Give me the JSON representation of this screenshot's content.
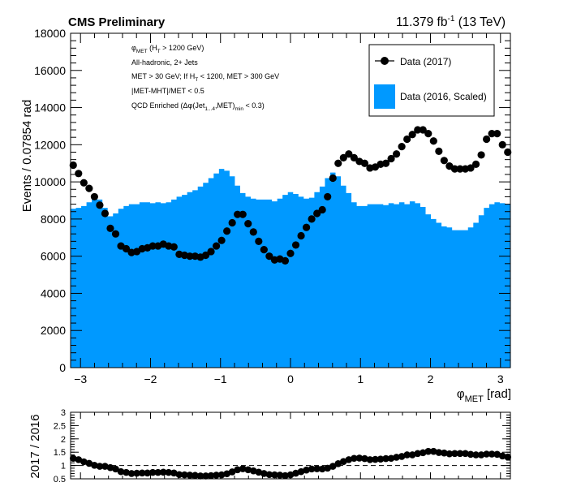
{
  "header": {
    "experiment_label": "CMS Preliminary",
    "lumi_prefix": "11.379 fb",
    "lumi_exp": "-1",
    "lumi_suffix": " (13 TeV)"
  },
  "selection": {
    "line1": {
      "main": "φ",
      "sub": "MET",
      "rest_a": " (H",
      "sub2": "T",
      "rest_b": " > 1200 GeV)"
    },
    "line2": "All-hadronic, 2+ Jets",
    "line3": {
      "a": "MET > 30 GeV; If H",
      "sub": "T",
      "b": " < 1200, MET > 300 GeV"
    },
    "line4": "|MET-MHT|/MET < 0.5",
    "line5": {
      "a": "QCD Enriched (Δφ(Jet",
      "sub": "1...4",
      "b": ",MET)",
      "sub2": "min",
      "c": " < 0.3)"
    }
  },
  "legend": {
    "entry_2017": "Data (2017)",
    "entry_2016": "Data (2016, Scaled)"
  },
  "colors": {
    "fill_2016": "#0099ff",
    "marker_2017": "#000000",
    "dashed_line": "#000000"
  },
  "chart_data": [
    {
      "type": "area",
      "title": "",
      "xlabel_main": "φ",
      "xlabel_sub": "MET",
      "xlabel_unit": " [rad]",
      "ylabel": "Events / 0.07854 rad",
      "xlim": [
        -3.1416,
        3.1416
      ],
      "ylim": [
        0,
        18000
      ],
      "x_ticks": [
        -3,
        -2,
        -1,
        0,
        1,
        2,
        3
      ],
      "x_tick_labels": [
        "−3",
        "−2",
        "−1",
        "0",
        "1",
        "2",
        "3"
      ],
      "y_ticks": [
        0,
        2000,
        4000,
        6000,
        8000,
        10000,
        12000,
        14000,
        16000,
        18000
      ],
      "y_tick_labels": [
        "0",
        "2000",
        "4000",
        "6000",
        "8000",
        "10000",
        "12000",
        "14000",
        "16000",
        "18000"
      ],
      "bin_width": 0.07854,
      "series": [
        {
          "name": "Data (2016, Scaled)",
          "style": "filled-histogram",
          "values": [
            8550,
            8600,
            8700,
            8900,
            9150,
            9050,
            8600,
            8150,
            8300,
            8550,
            8700,
            8800,
            8800,
            8900,
            8900,
            8850,
            8900,
            8850,
            8900,
            9050,
            9200,
            9300,
            9450,
            9550,
            9750,
            9950,
            10200,
            10450,
            10700,
            10600,
            10300,
            9800,
            9400,
            9200,
            9100,
            9050,
            9050,
            9050,
            8950,
            9100,
            9300,
            9450,
            9350,
            9200,
            9100,
            9150,
            9450,
            9750,
            10200,
            10500,
            10300,
            9800,
            9400,
            8900,
            8700,
            8700,
            8800,
            8800,
            8800,
            8750,
            8850,
            8800,
            8900,
            8800,
            8950,
            8850,
            8650,
            8250,
            8000,
            7800,
            7600,
            7550,
            7400,
            7400,
            7400,
            7550,
            7800,
            8200,
            8600,
            8800,
            8900,
            8850,
            8800
          ]
        },
        {
          "name": "Data (2017)",
          "style": "markers",
          "values": [
            10900,
            10450,
            9950,
            9650,
            9200,
            8750,
            8300,
            7500,
            7200,
            6550,
            6400,
            6200,
            6250,
            6400,
            6450,
            6550,
            6550,
            6650,
            6550,
            6500,
            6100,
            6050,
            6000,
            6000,
            5950,
            6050,
            6250,
            6550,
            6850,
            7350,
            7800,
            8250,
            8250,
            7750,
            7300,
            6800,
            6350,
            6000,
            5800,
            5850,
            5750,
            6150,
            6600,
            7100,
            7550,
            8000,
            8300,
            8500,
            9200,
            10200,
            11000,
            11300,
            11500,
            11300,
            11100,
            11000,
            10750,
            10800,
            10950,
            11000,
            11250,
            11500,
            11900,
            12300,
            12550,
            12800,
            12800,
            12600,
            12200,
            11650,
            11150,
            10850,
            10700,
            10700,
            10700,
            10750,
            10950,
            11450,
            12300,
            12600,
            12600,
            12000,
            11600
          ]
        }
      ]
    },
    {
      "type": "scatter",
      "title": "",
      "xlabel": "",
      "ylabel": "2017 / 2016",
      "xlim": [
        -3.1416,
        3.1416
      ],
      "ylim": [
        0.5,
        3
      ],
      "y_ticks": [
        0.5,
        1,
        1.5,
        2,
        2.5,
        3
      ],
      "y_tick_labels": [
        "0.5",
        "1",
        "1.5",
        "2",
        "2.5",
        "3"
      ],
      "reference_line": 1,
      "series": [
        {
          "name": "2017 / 2016",
          "values": [
            1.27,
            1.22,
            1.14,
            1.08,
            1.01,
            0.97,
            0.97,
            0.92,
            0.87,
            0.77,
            0.74,
            0.7,
            0.71,
            0.72,
            0.72,
            0.74,
            0.74,
            0.75,
            0.74,
            0.72,
            0.66,
            0.65,
            0.64,
            0.63,
            0.61,
            0.61,
            0.62,
            0.64,
            0.65,
            0.69,
            0.76,
            0.84,
            0.88,
            0.84,
            0.8,
            0.75,
            0.7,
            0.66,
            0.65,
            0.64,
            0.62,
            0.65,
            0.71,
            0.77,
            0.83,
            0.87,
            0.88,
            0.87,
            0.9,
            0.97,
            1.07,
            1.15,
            1.22,
            1.27,
            1.28,
            1.26,
            1.22,
            1.23,
            1.24,
            1.26,
            1.27,
            1.31,
            1.34,
            1.4,
            1.4,
            1.45,
            1.48,
            1.53,
            1.53,
            1.49,
            1.47,
            1.44,
            1.45,
            1.45,
            1.45,
            1.42,
            1.4,
            1.4,
            1.43,
            1.43,
            1.42,
            1.36,
            1.32
          ]
        }
      ]
    }
  ]
}
